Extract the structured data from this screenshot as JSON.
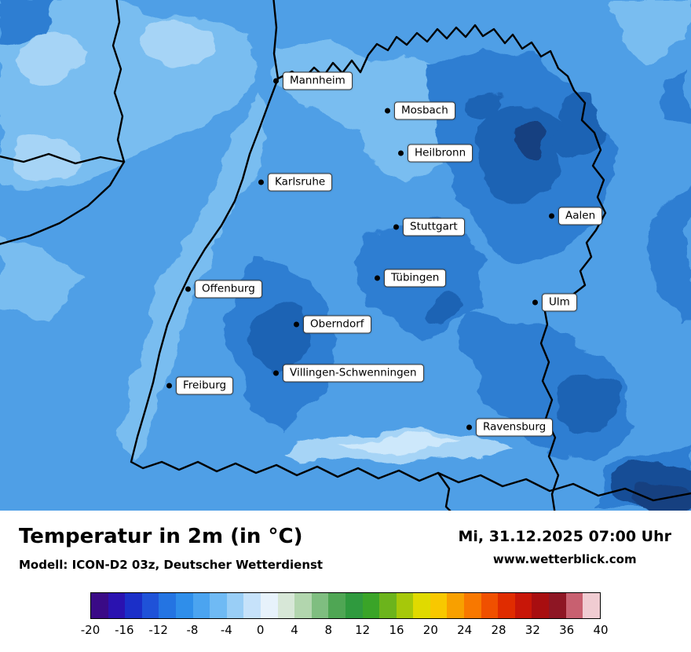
{
  "map": {
    "cities": [
      {
        "label": "Mannheim"
      },
      {
        "label": "Mosbach"
      },
      {
        "label": "Heilbronn"
      },
      {
        "label": "Karlsruhe"
      },
      {
        "label": "Stuttgart"
      },
      {
        "label": "Aalen"
      },
      {
        "label": "Offenburg"
      },
      {
        "label": "Tübingen"
      },
      {
        "label": "Ulm"
      },
      {
        "label": "Oberndorf"
      },
      {
        "label": "Villingen-Schwenningen"
      },
      {
        "label": "Freiburg"
      },
      {
        "label": "Ravensburg"
      }
    ]
  },
  "footer": {
    "title": "Temperatur in 2m (in °C)",
    "model": "Modell: ICON-D2 03z, Deutscher Wetterdienst",
    "datetime": "Mi, 31.12.2025 07:00 Uhr",
    "website": "www.wetterblick.com"
  },
  "legend": {
    "unit": "°C",
    "min": -20,
    "max": 40,
    "ticks": [
      "-20",
      "-16",
      "-12",
      "-8",
      "-4",
      "0",
      "4",
      "8",
      "12",
      "16",
      "20",
      "24",
      "28",
      "32",
      "36",
      "40"
    ],
    "colors": [
      "#3a0a86",
      "#2a12b0",
      "#1b2fc8",
      "#1f52d8",
      "#2474e2",
      "#2f8eea",
      "#4ba4f0",
      "#6fbaf4",
      "#99cef6",
      "#c6e2fa",
      "#e7f2fb",
      "#d7e7d7",
      "#b2d6ae",
      "#7fbe80",
      "#4fa654",
      "#2f9a3e",
      "#3aa428",
      "#6cb41c",
      "#a6c80a",
      "#e0da00",
      "#f8c800",
      "#f8a000",
      "#f87800",
      "#f05000",
      "#e02c00",
      "#c81608",
      "#a80e10",
      "#8e1624",
      "#c86070",
      "#f0ccd2"
    ]
  }
}
